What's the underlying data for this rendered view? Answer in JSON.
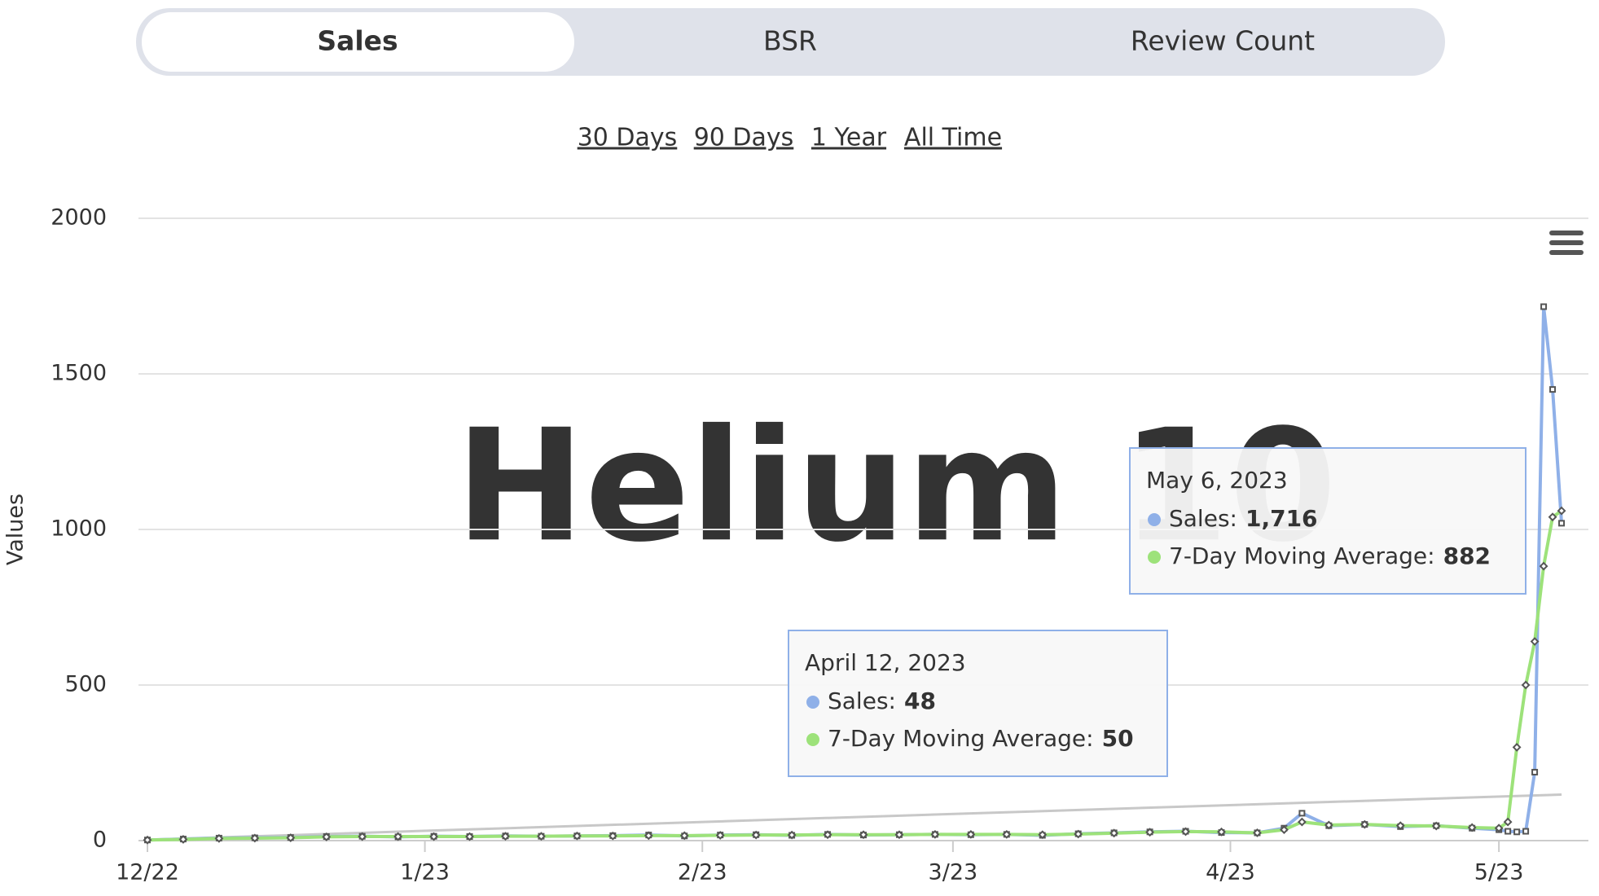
{
  "tabs": [
    "Sales",
    "BSR",
    "Review Count"
  ],
  "ranges": [
    "30 Days",
    "90 Days",
    "1 Year",
    "All Time"
  ],
  "watermark": "Helium 10",
  "chart_data": {
    "type": "line",
    "y_label": "Values",
    "x": [
      "2022-12-01",
      "2022-12-05",
      "2022-12-09",
      "2022-12-13",
      "2022-12-17",
      "2022-12-21",
      "2022-12-25",
      "2022-12-29",
      "2023-01-02",
      "2023-01-06",
      "2023-01-10",
      "2023-01-14",
      "2023-01-18",
      "2023-01-22",
      "2023-01-26",
      "2023-01-30",
      "2023-02-03",
      "2023-02-07",
      "2023-02-11",
      "2023-02-15",
      "2023-02-19",
      "2023-02-23",
      "2023-02-27",
      "2023-03-03",
      "2023-03-07",
      "2023-03-11",
      "2023-03-15",
      "2023-03-19",
      "2023-03-23",
      "2023-03-27",
      "2023-03-31",
      "2023-04-04",
      "2023-04-07",
      "2023-04-09",
      "2023-04-12",
      "2023-04-16",
      "2023-04-20",
      "2023-04-24",
      "2023-04-28",
      "2023-05-01",
      "2023-05-02",
      "2023-05-03",
      "2023-05-04",
      "2023-05-05",
      "2023-05-06",
      "2023-05-07",
      "2023-05-08"
    ],
    "series": [
      {
        "name": "Sales",
        "color": "#8fb0e8",
        "marker": "square",
        "values": [
          2,
          5,
          8,
          9,
          10,
          13,
          14,
          12,
          14,
          13,
          15,
          14,
          15,
          16,
          18,
          15,
          18,
          19,
          17,
          20,
          18,
          19,
          20,
          19,
          20,
          17,
          22,
          25,
          28,
          30,
          26,
          25,
          40,
          88,
          48,
          52,
          45,
          48,
          40,
          35,
          30,
          28,
          30,
          220,
          1716,
          1450,
          1020
        ]
      },
      {
        "name": "7-Day Moving Average",
        "color": "#9de27a",
        "marker": "diamond",
        "values": [
          2,
          4,
          7,
          8,
          9,
          12,
          13,
          13,
          13,
          13,
          14,
          14,
          15,
          15,
          16,
          16,
          17,
          18,
          18,
          19,
          19,
          19,
          20,
          20,
          20,
          19,
          21,
          24,
          27,
          29,
          28,
          25,
          35,
          60,
          50,
          52,
          48,
          47,
          42,
          40,
          60,
          300,
          500,
          640,
          882,
          1040,
          1060
        ]
      }
    ],
    "trend_line": {
      "color": "#c8c8c8",
      "x": [
        "2022-12-01",
        "2023-05-08"
      ],
      "values": [
        3,
        148
      ]
    },
    "xlim": [
      "2022-11-30",
      "2023-05-11"
    ],
    "xticks": [
      {
        "value": "2022-12-01",
        "label": "12/22"
      },
      {
        "value": "2023-01-01",
        "label": "1/23"
      },
      {
        "value": "2023-02-01",
        "label": "2/23"
      },
      {
        "value": "2023-03-01",
        "label": "3/23"
      },
      {
        "value": "2023-04-01",
        "label": "4/23"
      },
      {
        "value": "2023-05-01",
        "label": "5/23"
      }
    ],
    "ylim": [
      0,
      2000
    ],
    "yticks": [
      0,
      500,
      1000,
      1500,
      2000
    ],
    "grid": true,
    "tooltips": [
      {
        "title": "May 6, 2023",
        "rows": [
          {
            "label": "Sales:",
            "value": "1,716"
          },
          {
            "label": "7-Day Moving Average:",
            "value": "882"
          }
        ]
      },
      {
        "title": "April 12, 2023",
        "rows": [
          {
            "label": "Sales:",
            "value": "48"
          },
          {
            "label": "7-Day Moving Average:",
            "value": "50"
          }
        ]
      }
    ]
  }
}
